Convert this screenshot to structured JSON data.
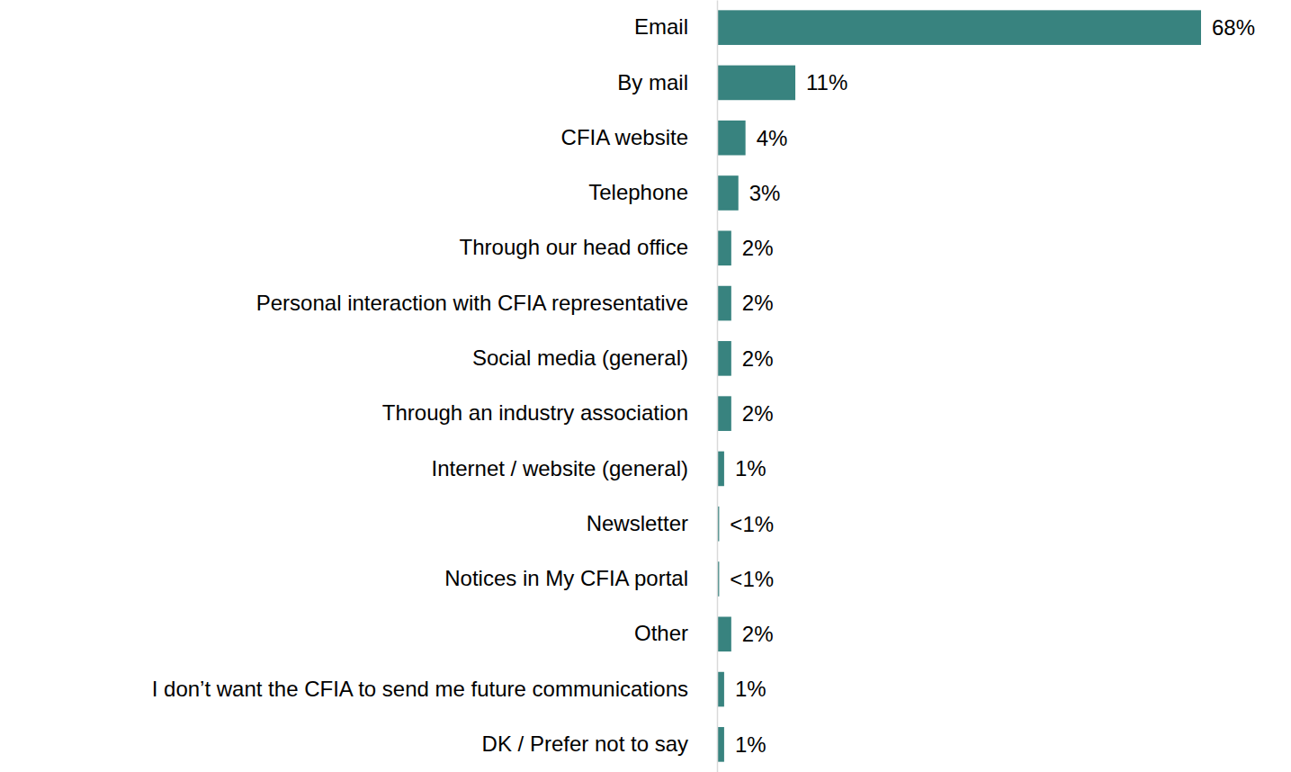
{
  "chart_data": {
    "type": "bar",
    "orientation": "horizontal",
    "categories": [
      "Email",
      "By mail",
      "CFIA website",
      "Telephone",
      "Through our head office",
      "Personal interaction with CFIA representative",
      "Social media (general)",
      "Through an industry association",
      "Internet / website (general)",
      "Newsletter",
      "Notices in My CFIA portal",
      "Other",
      "I don’t want the CFIA to send me future communications",
      "DK  / Prefer not to say"
    ],
    "values": [
      68,
      11,
      4,
      3,
      2,
      2,
      2,
      2,
      1,
      0.3,
      0.3,
      2,
      1,
      1
    ],
    "value_labels": [
      "68%",
      "11%",
      "4%",
      "3%",
      "2%",
      "2%",
      "2%",
      "2%",
      "1%",
      "<1%",
      "<1%",
      "2%",
      "1%",
      "1%"
    ],
    "color": "#38837f",
    "data_labels": true,
    "tick_labels": "y",
    "grid": false
  }
}
